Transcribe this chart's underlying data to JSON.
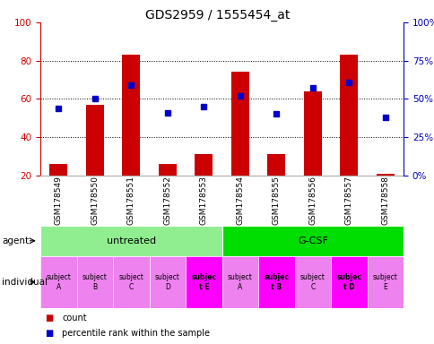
{
  "title": "GDS2959 / 1555454_at",
  "samples": [
    "GSM178549",
    "GSM178550",
    "GSM178551",
    "GSM178552",
    "GSM178553",
    "GSM178554",
    "GSM178555",
    "GSM178556",
    "GSM178557",
    "GSM178558"
  ],
  "counts": [
    26,
    57,
    83,
    26,
    31,
    74,
    31,
    64,
    83,
    21
  ],
  "percentile_ranks": [
    44,
    50,
    59,
    41,
    45,
    52,
    40,
    57,
    61,
    38
  ],
  "ylim_left": [
    20,
    100
  ],
  "ylim_right": [
    0,
    100
  ],
  "agent_groups": [
    {
      "label": "untreated",
      "start": 0,
      "end": 5,
      "color": "#90ee90"
    },
    {
      "label": "G-CSF",
      "start": 5,
      "end": 10,
      "color": "#00dd00"
    }
  ],
  "individuals": [
    {
      "label": "subject\nA",
      "col_idx": 0,
      "bold": false
    },
    {
      "label": "subject\nB",
      "col_idx": 1,
      "bold": false
    },
    {
      "label": "subject\nC",
      "col_idx": 2,
      "bold": false
    },
    {
      "label": "subject\nD",
      "col_idx": 3,
      "bold": false
    },
    {
      "label": "subjec\nt E",
      "col_idx": 4,
      "bold": true
    },
    {
      "label": "subject\nA",
      "col_idx": 5,
      "bold": false
    },
    {
      "label": "subjec\nt B",
      "col_idx": 6,
      "bold": true
    },
    {
      "label": "subject\nC",
      "col_idx": 7,
      "bold": false
    },
    {
      "label": "subjec\nt D",
      "col_idx": 8,
      "bold": true
    },
    {
      "label": "subject\nE",
      "col_idx": 9,
      "bold": false
    }
  ],
  "individual_colors": [
    "#ee82ee",
    "#ee82ee",
    "#ee82ee",
    "#ee82ee",
    "#ff00ff",
    "#ee82ee",
    "#ff00ff",
    "#ee82ee",
    "#ff00ff",
    "#ee82ee"
  ],
  "bar_color": "#cc0000",
  "dot_color": "#0000cc",
  "grid_color": "#000000",
  "tick_color_left": "#cc0000",
  "tick_color_right": "#0000bb",
  "label_area_color": "#d3d3d3",
  "plot_bg_color": "#ffffff"
}
